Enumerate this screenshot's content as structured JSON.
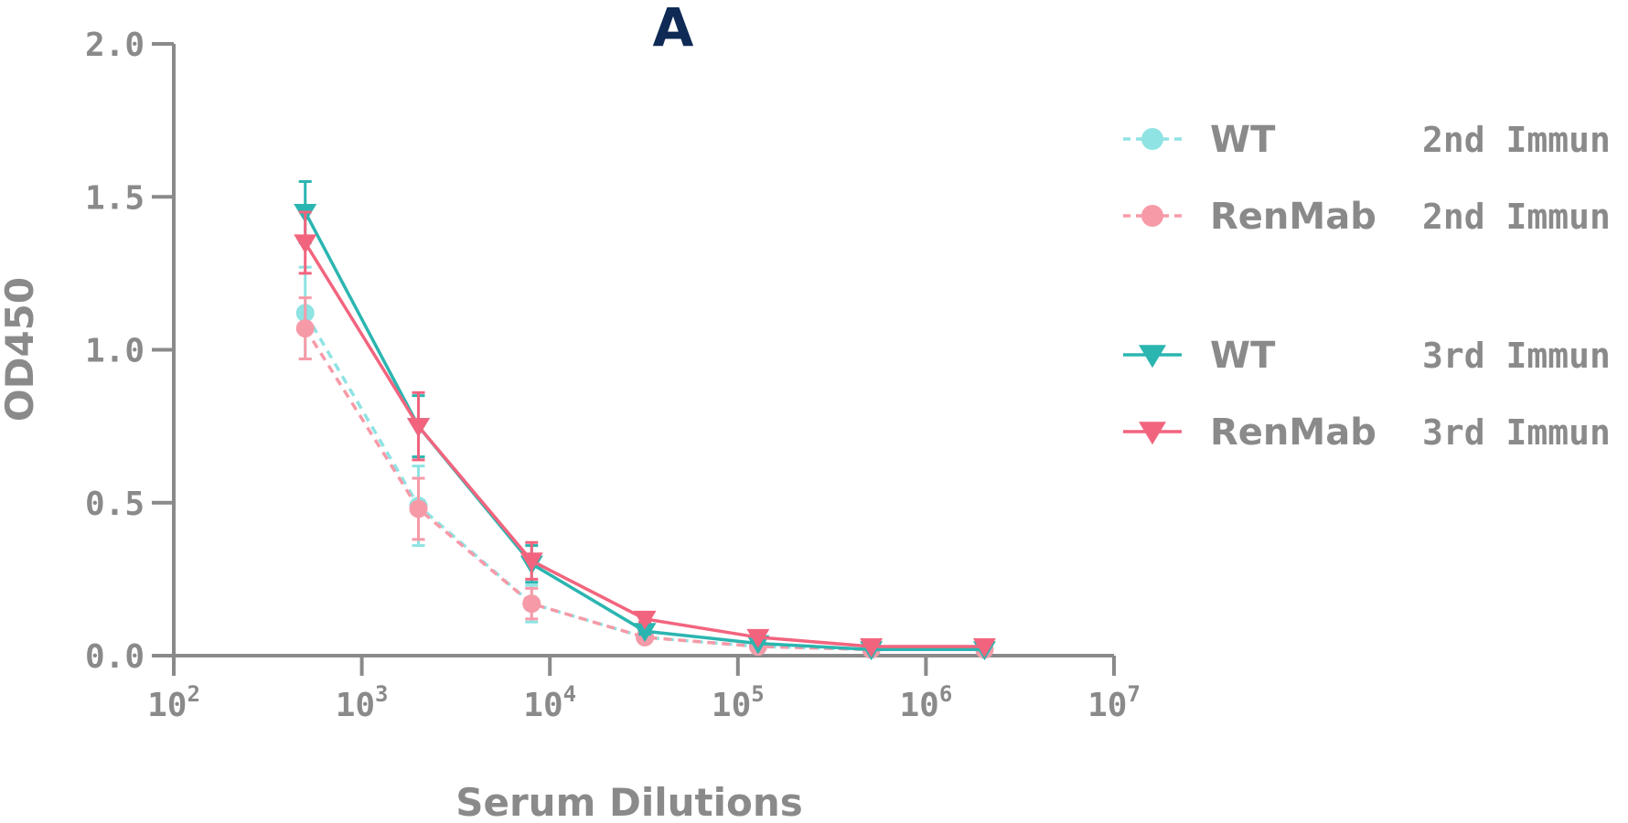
{
  "chart_data": {
    "type": "line",
    "title": "A",
    "xlabel": "Serum Dilutions",
    "ylabel": "OD450",
    "x_scale": "log",
    "xlim": [
      100,
      10000000
    ],
    "ylim": [
      0,
      2.0
    ],
    "x_ticks": [
      {
        "base": "10",
        "exp": "2",
        "value": 100
      },
      {
        "base": "10",
        "exp": "3",
        "value": 1000
      },
      {
        "base": "10",
        "exp": "4",
        "value": 10000
      },
      {
        "base": "10",
        "exp": "5",
        "value": 100000
      },
      {
        "base": "10",
        "exp": "6",
        "value": 1000000
      },
      {
        "base": "10",
        "exp": "7",
        "value": 10000000
      }
    ],
    "y_ticks": [
      {
        "label": "0.0",
        "value": 0
      },
      {
        "label": "0.5",
        "value": 0.5
      },
      {
        "label": "1.0",
        "value": 1.0
      },
      {
        "label": "1.5",
        "value": 1.5
      },
      {
        "label": "2.0",
        "value": 2.0
      }
    ],
    "grid": false,
    "legend_position": "right",
    "x": [
      500,
      2000,
      8000,
      32000,
      128000,
      512000,
      2048000
    ],
    "series": [
      {
        "name": "WT",
        "description": "2nd Immun",
        "marker": "circle",
        "line": "dashed",
        "color": "#8fe3e3",
        "values": [
          1.12,
          0.49,
          0.17,
          0.06,
          0.03,
          0.02,
          0.02
        ],
        "errors": [
          0.15,
          0.13,
          0.06,
          0.01,
          0.005,
          0.005,
          0.005
        ]
      },
      {
        "name": "RenMab",
        "description": "2nd Immun",
        "marker": "circle",
        "line": "dashed",
        "color": "#f79aa8",
        "values": [
          1.07,
          0.48,
          0.17,
          0.06,
          0.03,
          0.02,
          0.02
        ],
        "errors": [
          0.1,
          0.1,
          0.05,
          0.01,
          0.005,
          0.005,
          0.005
        ]
      },
      {
        "name": "WT",
        "description": "3rd Immun",
        "marker": "triangle-down",
        "line": "solid",
        "color": "#2bb5b0",
        "values": [
          1.45,
          0.75,
          0.3,
          0.08,
          0.04,
          0.02,
          0.02
        ],
        "errors": [
          0.1,
          0.1,
          0.06,
          0.01,
          0.005,
          0.005,
          0.005
        ]
      },
      {
        "name": "RenMab",
        "description": "3rd Immun",
        "marker": "triangle-down",
        "line": "solid",
        "color": "#f2647e",
        "values": [
          1.35,
          0.75,
          0.31,
          0.12,
          0.06,
          0.03,
          0.03
        ],
        "errors": [
          0.1,
          0.11,
          0.06,
          0.01,
          0.005,
          0.005,
          0.005
        ]
      }
    ]
  }
}
